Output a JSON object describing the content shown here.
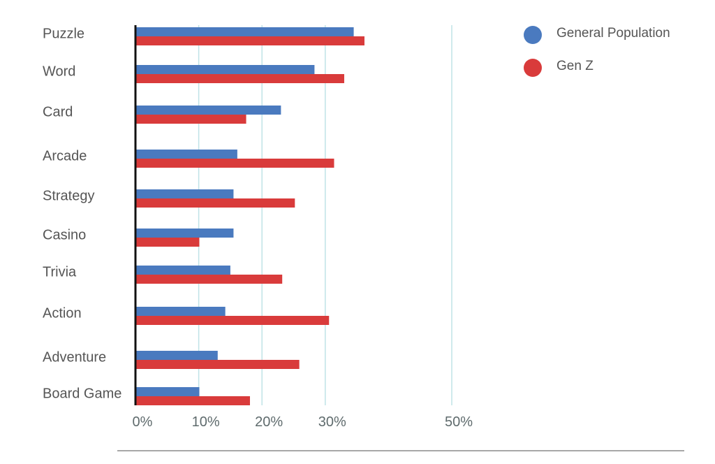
{
  "chart_data": {
    "type": "bar",
    "orientation": "horizontal",
    "categories": [
      "Puzzle",
      "Word",
      "Card",
      "Arcade",
      "Strategy",
      "Casino",
      "Trivia",
      "Action",
      "Adventure",
      "Board Game"
    ],
    "series": [
      {
        "name": "General Population",
        "color": "#4a7abf",
        "values": [
          34.5,
          28.3,
          23.0,
          16.1,
          15.5,
          15.5,
          15.0,
          14.2,
          13.0,
          10.1
        ]
      },
      {
        "name": "Gen Z",
        "color": "#d93b3b",
        "values": [
          36.2,
          33.0,
          17.5,
          31.4,
          25.2,
          10.1,
          23.2,
          30.6,
          25.9,
          18.1
        ]
      }
    ],
    "xlim": [
      0,
      50
    ],
    "x_ticks": [
      "0%",
      "10%",
      "20%",
      "30%",
      "50%"
    ],
    "x_tick_values": [
      0,
      10,
      20,
      30,
      50
    ],
    "grid": true,
    "legend_position": "top-right",
    "title": "",
    "xlabel": "",
    "ylabel": ""
  }
}
